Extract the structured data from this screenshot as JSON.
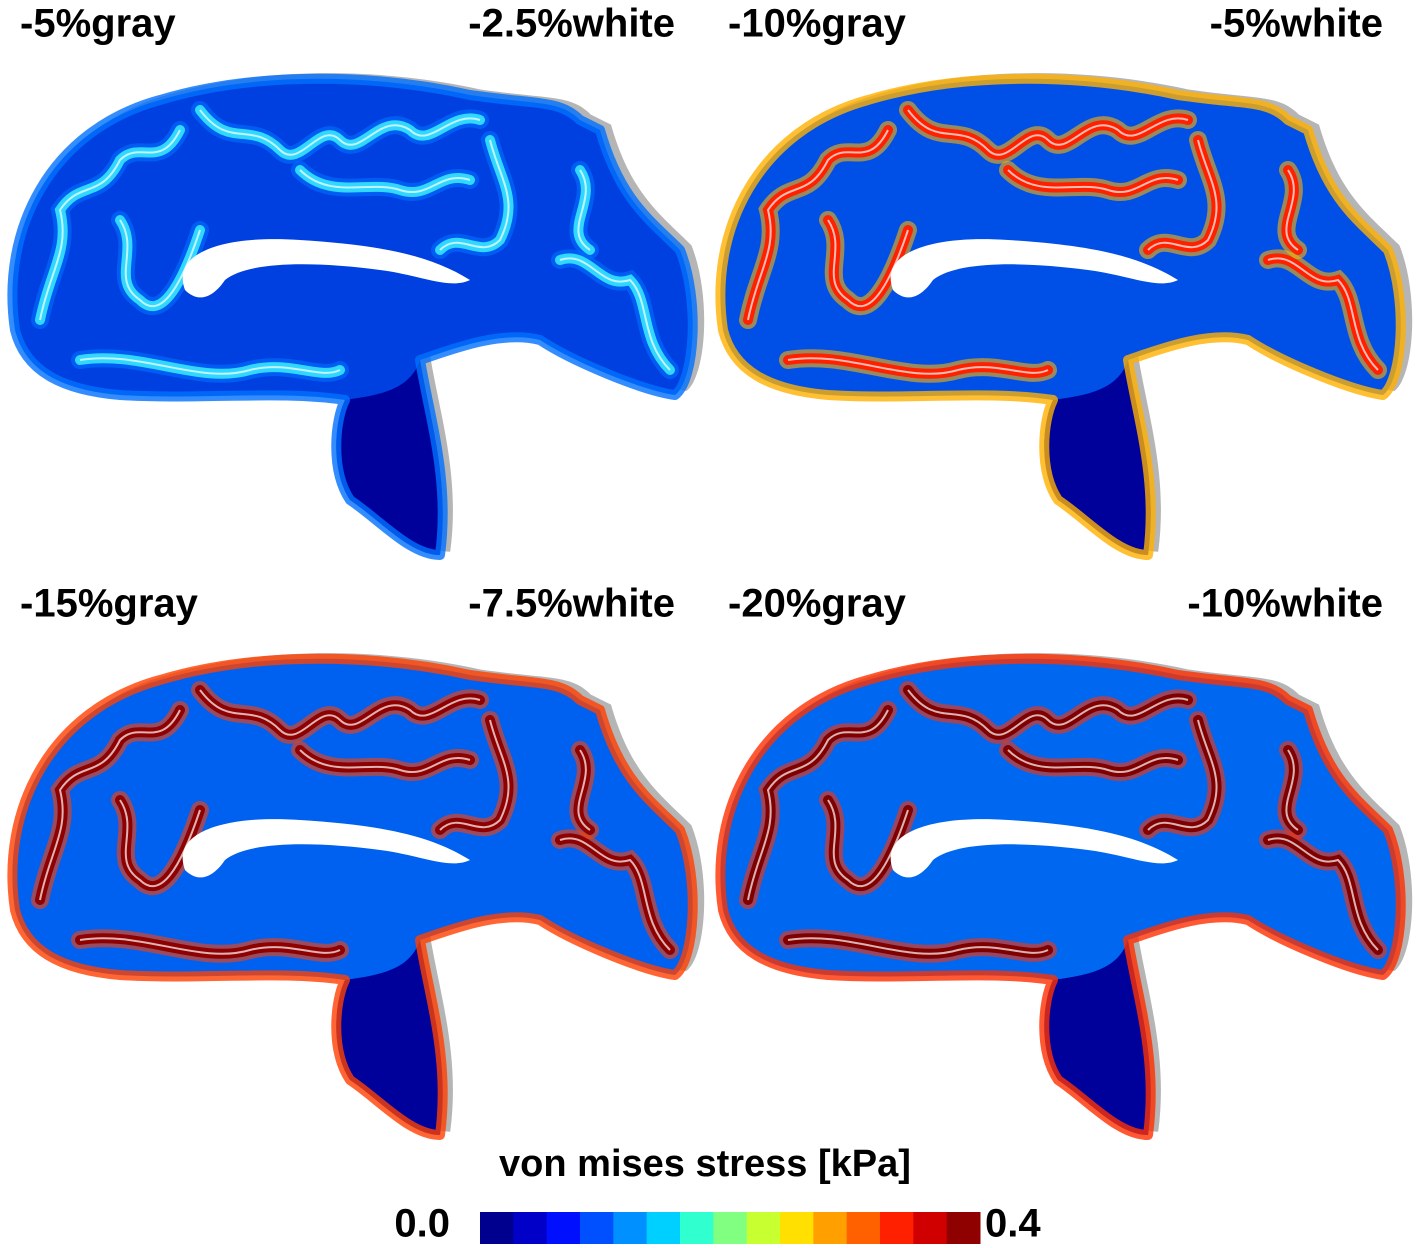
{
  "panels": [
    {
      "gray_label": "-5%gray",
      "white_label": "-2.5%white"
    },
    {
      "gray_label": "-10%gray",
      "white_label": "-5%white"
    },
    {
      "gray_label": "-15%gray",
      "white_label": "-7.5%white"
    },
    {
      "gray_label": "-20%gray",
      "white_label": "-10%white"
    }
  ],
  "colorbar": {
    "title": "von mises stress [kPa]",
    "min_label": "0.0",
    "max_label": "0.4",
    "colors": [
      "#00008f",
      "#0000c8",
      "#0010ff",
      "#0050ff",
      "#0090ff",
      "#00d0ff",
      "#30ffd0",
      "#80ff80",
      "#c8ff30",
      "#ffe000",
      "#ffa000",
      "#ff6000",
      "#ff2000",
      "#d00000",
      "#8f0000"
    ]
  }
}
